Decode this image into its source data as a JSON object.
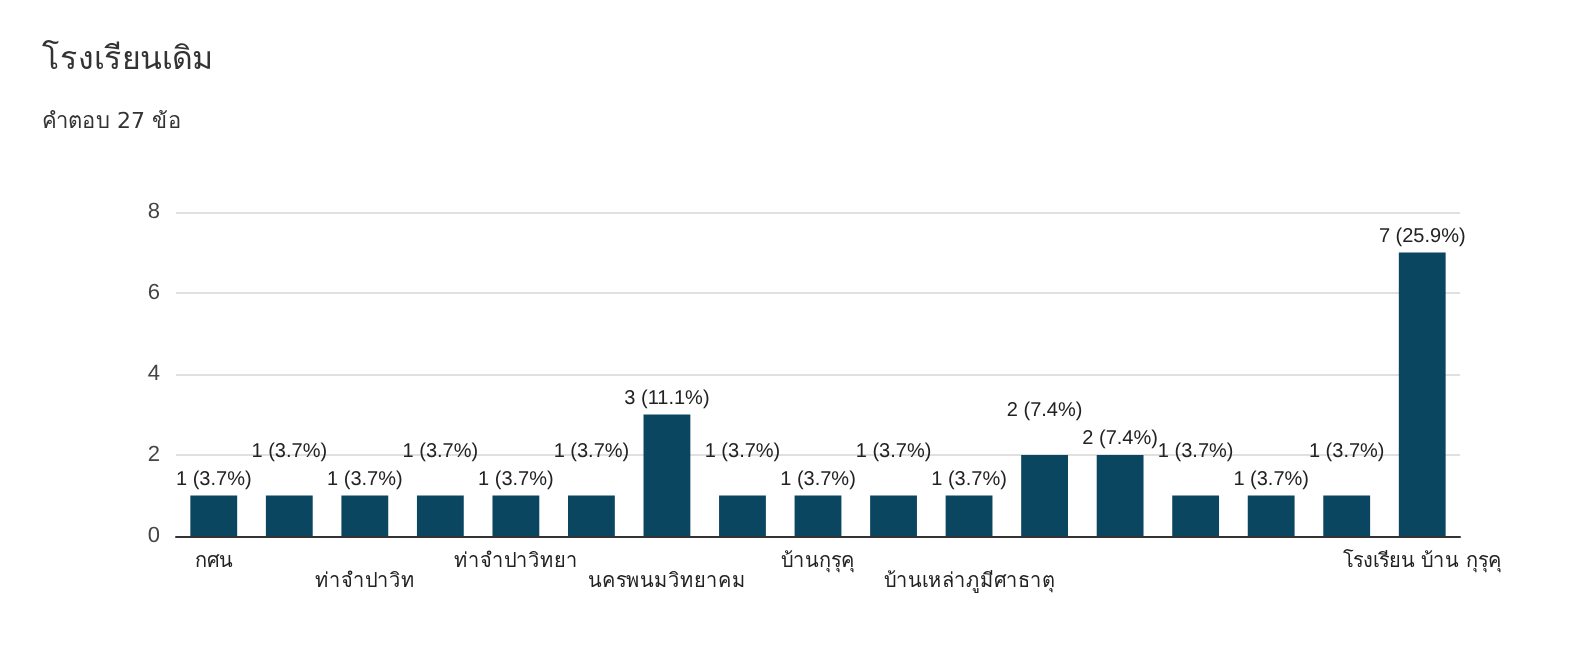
{
  "chart_data": {
    "type": "bar",
    "title": "โรงเรียนเดิม",
    "subtitle": "คำตอบ 27 ข้อ",
    "categories": [
      "กศน",
      null,
      "ท่าจำปาวิท",
      null,
      "ท่าจำปาวิทยา",
      null,
      "นครพนมวิทยาคม",
      null,
      "บ้านกุรุคุ",
      null,
      "บ้านเหล่าภูมีศาธาตุ",
      null,
      null,
      null,
      null,
      null,
      "โรงเรียน บ้าน กุรุคุ"
    ],
    "values": [
      1,
      1,
      1,
      1,
      1,
      1,
      3,
      1,
      1,
      1,
      1,
      2,
      2,
      1,
      1,
      1,
      7
    ],
    "value_labels": [
      "1 (3.7%)",
      "1 (3.7%)",
      "1 (3.7%)",
      "1 (3.7%)",
      "1 (3.7%)",
      "1 (3.7%)",
      "3 (11.1%)",
      "1 (3.7%)",
      "1 (3.7%)",
      "1 (3.7%)",
      "1 (3.7%)",
      "2 (7.4%)",
      "2 (7.4%)",
      "1 (3.7%)",
      "1 (3.7%)",
      "1 (3.7%)",
      "7 (25.9%)"
    ],
    "color": "#0b4660",
    "ylim": [
      0,
      8
    ],
    "yticks": [
      0,
      2,
      4,
      6,
      8
    ],
    "grid": "y"
  }
}
